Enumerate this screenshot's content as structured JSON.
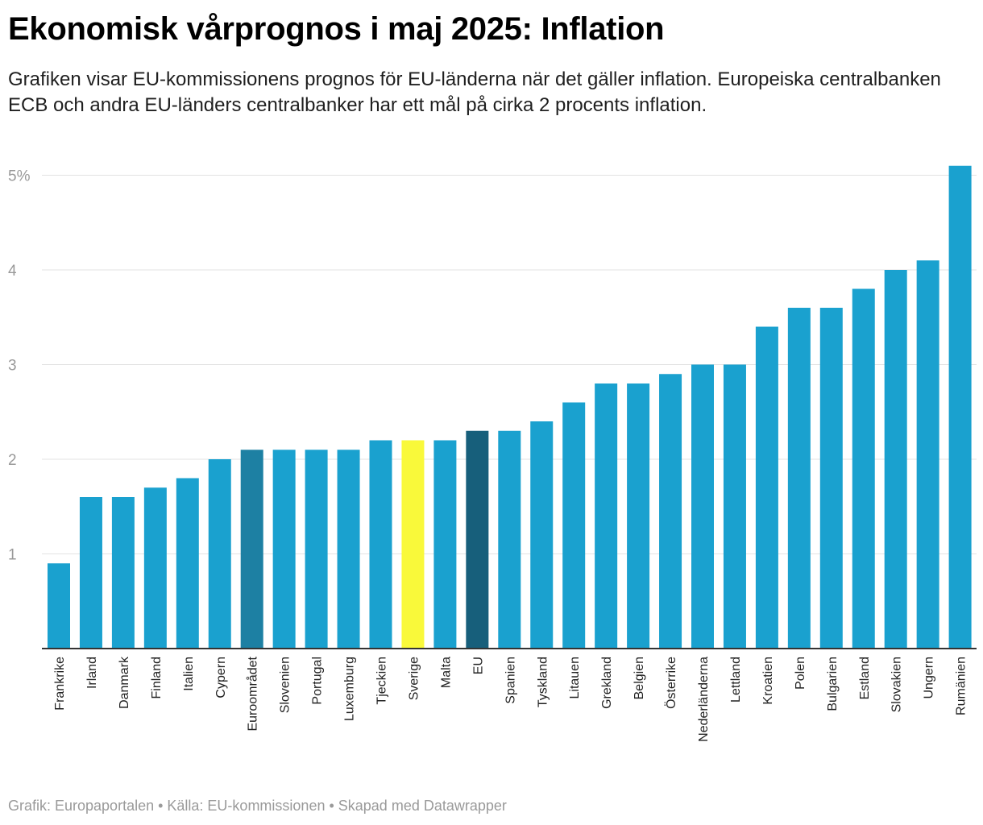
{
  "header": {
    "title": "Ekonomisk vårprognos i maj 2025: Inflation",
    "subtitle": "Grafiken visar EU-kommissionens prognos för EU-länderna när det gäller inflation. Europeiska centralbanken ECB och andra EU-länders centralbanker har ett mål på cirka 2 procents inflation."
  },
  "footer": {
    "credit": "Grafik: Europaportalen • Källa: EU-kommissionen • Skapad med Datawrapper"
  },
  "colors": {
    "bar_default": "#1aa1cf",
    "bar_euroarea": "#1d80a3",
    "bar_eu": "#175f7b",
    "bar_sweden": "#f9f93a",
    "gridline": "#e3e3e3",
    "baseline": "#333333"
  },
  "chart_data": {
    "type": "bar",
    "title": "Ekonomisk vårprognos i maj 2025: Inflation",
    "xlabel": "",
    "ylabel": "",
    "ylim": [
      0,
      5.1
    ],
    "grid": true,
    "yticks": [
      {
        "value": 1,
        "label": "1"
      },
      {
        "value": 2,
        "label": "2"
      },
      {
        "value": 3,
        "label": "3"
      },
      {
        "value": 4,
        "label": "4"
      },
      {
        "value": 5,
        "label": "5%"
      }
    ],
    "categories": [
      "Frankrike",
      "Irland",
      "Danmark",
      "Finland",
      "Italien",
      "Cypern",
      "Euroområdet",
      "Slovenien",
      "Portugal",
      "Luxemburg",
      "Tjeckien",
      "Sverige",
      "Malta",
      "EU",
      "Spanien",
      "Tyskland",
      "Litauen",
      "Grekland",
      "Belgien",
      "Österrike",
      "Nederländerna",
      "Lettland",
      "Kroatien",
      "Polen",
      "Bulgarien",
      "Estland",
      "Slovakien",
      "Ungern",
      "Rumänien"
    ],
    "values": [
      0.9,
      1.6,
      1.6,
      1.7,
      1.8,
      2.0,
      2.1,
      2.1,
      2.1,
      2.1,
      2.2,
      2.2,
      2.2,
      2.3,
      2.3,
      2.4,
      2.6,
      2.8,
      2.8,
      2.9,
      3.0,
      3.0,
      3.4,
      3.6,
      3.6,
      3.8,
      4.0,
      4.1,
      5.1
    ],
    "highlights": {
      "Euroområdet": "bar_euroarea",
      "EU": "bar_eu",
      "Sverige": "bar_sweden"
    }
  }
}
